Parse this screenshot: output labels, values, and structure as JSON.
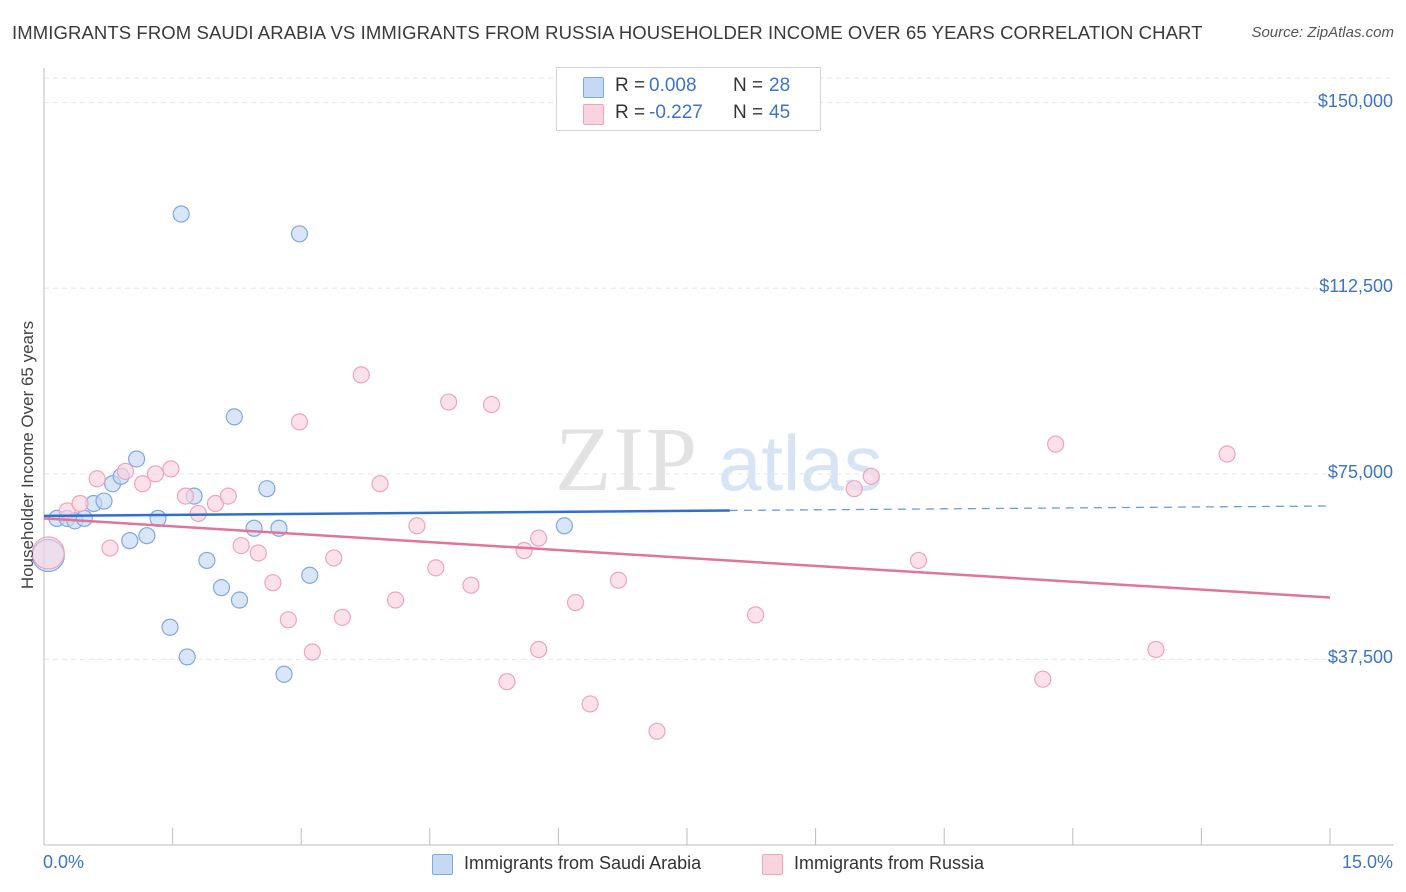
{
  "title": "IMMIGRANTS FROM SAUDI ARABIA VS IMMIGRANTS FROM RUSSIA HOUSEHOLDER INCOME OVER 65 YEARS CORRELATION CHART",
  "source": "Source: ZipAtlas.com",
  "watermark": {
    "zip": "ZIP",
    "atlas": "atlas"
  },
  "colors": {
    "saudi_fill": "#c5d9f2",
    "saudi_stroke": "#7fa8e0",
    "saudi_line": "#2f6fcf",
    "russia_fill": "#f9d3de",
    "russia_stroke": "#eea4bb",
    "russia_line": "#e2739a",
    "axis_text": "#3d74c4"
  },
  "legend": {
    "saudi": {
      "r_label": "R =",
      "r_value": "0.008",
      "n_label": "N =",
      "n_value": "28"
    },
    "russia": {
      "r_label": "R =",
      "r_value": "-0.227",
      "n_label": "N =",
      "n_value": "45"
    }
  },
  "bottom_legend": {
    "saudi": "Immigrants from Saudi Arabia",
    "russia": "Immigrants from Russia"
  },
  "chart_data": {
    "type": "scatter",
    "title": "IMMIGRANTS FROM SAUDI ARABIA VS IMMIGRANTS FROM RUSSIA HOUSEHOLDER INCOME OVER 65 YEARS CORRELATION CHART",
    "xlabel": "",
    "ylabel": "Householder Income Over 65 years",
    "xlim": [
      0,
      15
    ],
    "ylim": [
      0,
      157000
    ],
    "x_tick_labels": {
      "min": "0.0%",
      "max": "15.0%"
    },
    "y_ticks": [
      {
        "value": 37500,
        "label": "$37,500"
      },
      {
        "value": 75000,
        "label": "$75,000"
      },
      {
        "value": 112500,
        "label": "$112,500"
      },
      {
        "value": 150000,
        "label": "$150,000"
      }
    ],
    "grid": true,
    "series": [
      {
        "name": "Immigrants from Saudi Arabia",
        "r": 0.008,
        "n": 28,
        "trend": {
          "x0": 0,
          "y0": 66500,
          "x1": 8.0,
          "y1": 67600,
          "dashed_to_x": 15,
          "dashed_y": 68500
        },
        "points": [
          {
            "x": 0.05,
            "y": 58500,
            "big": true
          },
          {
            "x": 0.15,
            "y": 66000
          },
          {
            "x": 0.27,
            "y": 66000
          },
          {
            "x": 0.36,
            "y": 65500
          },
          {
            "x": 0.47,
            "y": 66000
          },
          {
            "x": 0.58,
            "y": 69000
          },
          {
            "x": 0.7,
            "y": 69500
          },
          {
            "x": 0.8,
            "y": 73000
          },
          {
            "x": 0.9,
            "y": 74500
          },
          {
            "x": 1.08,
            "y": 78000
          },
          {
            "x": 1.0,
            "y": 61500
          },
          {
            "x": 1.2,
            "y": 62500
          },
          {
            "x": 1.33,
            "y": 66000
          },
          {
            "x": 1.47,
            "y": 44000
          },
          {
            "x": 1.6,
            "y": 127500
          },
          {
            "x": 1.67,
            "y": 38000
          },
          {
            "x": 1.75,
            "y": 70500
          },
          {
            "x": 1.9,
            "y": 57500
          },
          {
            "x": 2.07,
            "y": 52000
          },
          {
            "x": 2.22,
            "y": 86500
          },
          {
            "x": 2.28,
            "y": 49500
          },
          {
            "x": 2.45,
            "y": 64000
          },
          {
            "x": 2.6,
            "y": 72000
          },
          {
            "x": 2.74,
            "y": 64000
          },
          {
            "x": 2.98,
            "y": 123500
          },
          {
            "x": 3.1,
            "y": 54500
          },
          {
            "x": 2.8,
            "y": 34500
          },
          {
            "x": 6.07,
            "y": 64500
          }
        ]
      },
      {
        "name": "Immigrants from Russia",
        "r": -0.227,
        "n": 45,
        "trend": {
          "x0": 0,
          "y0": 66000,
          "x1": 15,
          "y1": 50000
        },
        "points": [
          {
            "x": 0.05,
            "y": 59000,
            "big": true
          },
          {
            "x": 0.27,
            "y": 67500
          },
          {
            "x": 0.42,
            "y": 69000
          },
          {
            "x": 0.62,
            "y": 74000
          },
          {
            "x": 0.77,
            "y": 60000
          },
          {
            "x": 0.95,
            "y": 75500
          },
          {
            "x": 1.15,
            "y": 73000
          },
          {
            "x": 1.3,
            "y": 75000
          },
          {
            "x": 1.48,
            "y": 76000
          },
          {
            "x": 1.65,
            "y": 70500
          },
          {
            "x": 1.8,
            "y": 67000
          },
          {
            "x": 2.0,
            "y": 69000
          },
          {
            "x": 2.15,
            "y": 70500
          },
          {
            "x": 2.3,
            "y": 60500
          },
          {
            "x": 2.5,
            "y": 59000
          },
          {
            "x": 2.67,
            "y": 53000
          },
          {
            "x": 2.85,
            "y": 45500
          },
          {
            "x": 2.98,
            "y": 85500
          },
          {
            "x": 3.13,
            "y": 39000
          },
          {
            "x": 3.38,
            "y": 58000
          },
          {
            "x": 3.48,
            "y": 46000
          },
          {
            "x": 3.7,
            "y": 95000
          },
          {
            "x": 3.92,
            "y": 73000
          },
          {
            "x": 4.1,
            "y": 49500
          },
          {
            "x": 4.35,
            "y": 64500
          },
          {
            "x": 4.57,
            "y": 56000
          },
          {
            "x": 4.72,
            "y": 89500
          },
          {
            "x": 4.98,
            "y": 52500
          },
          {
            "x": 5.22,
            "y": 89000
          },
          {
            "x": 5.4,
            "y": 33000
          },
          {
            "x": 5.6,
            "y": 59500
          },
          {
            "x": 5.77,
            "y": 62000
          },
          {
            "x": 5.77,
            "y": 39500
          },
          {
            "x": 6.2,
            "y": 49000
          },
          {
            "x": 6.37,
            "y": 28500
          },
          {
            "x": 6.7,
            "y": 53500
          },
          {
            "x": 7.15,
            "y": 23000
          },
          {
            "x": 8.3,
            "y": 46500
          },
          {
            "x": 9.45,
            "y": 72000
          },
          {
            "x": 9.65,
            "y": 74500
          },
          {
            "x": 10.2,
            "y": 57500
          },
          {
            "x": 11.65,
            "y": 33500
          },
          {
            "x": 11.8,
            "y": 81000
          },
          {
            "x": 12.97,
            "y": 39500
          },
          {
            "x": 13.8,
            "y": 79000
          }
        ]
      }
    ]
  }
}
